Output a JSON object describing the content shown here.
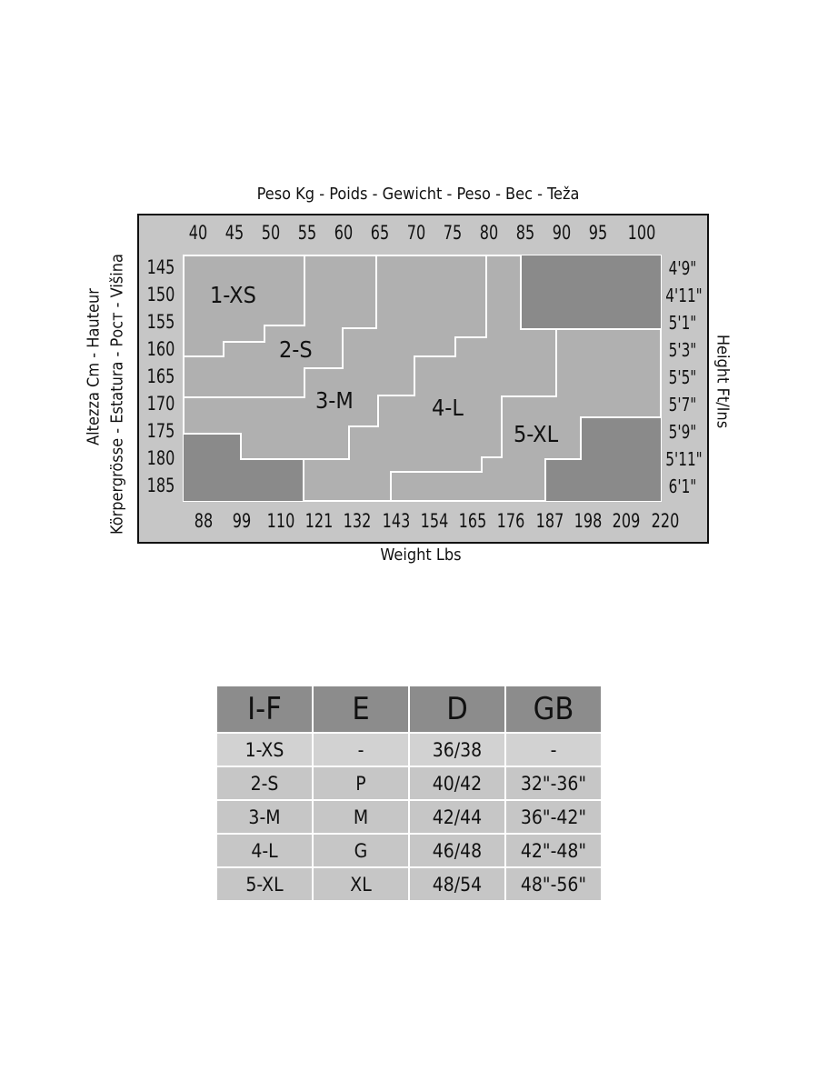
{
  "chart": {
    "top_title": "Peso Kg - Poids - Gewicht - Peso - Bec - Teža",
    "bottom_title": "Weight Lbs",
    "left_title_1": "Altezza Cm - Hauteur",
    "left_title_2": "Körpergrösse - Estatura - Рост - Višina",
    "right_title": "Height Ft/Ins",
    "kg_ticks": [
      "40",
      "45",
      "50",
      "55",
      "60",
      "65",
      "70",
      "75",
      "80",
      "85",
      "90",
      "95",
      "100"
    ],
    "lbs_ticks": [
      "88",
      "99",
      "110",
      "121",
      "132",
      "143",
      "154",
      "165",
      "176",
      "187",
      "198",
      "209",
      "220"
    ],
    "cm_ticks": [
      "145",
      "150",
      "155",
      "160",
      "165",
      "170",
      "175",
      "180",
      "185"
    ],
    "ft_ticks": [
      "4'9\"",
      "4'11\"",
      "5'1\"",
      "5'3\"",
      "5'5\"",
      "5'7\"",
      "5'9\"",
      "5'11\"",
      "6'1\""
    ],
    "zones": [
      "1-XS",
      "2-S",
      "3-M",
      "4-L",
      "5-XL"
    ],
    "colors": {
      "zone": "#b0b0b0",
      "outside": "#8a8a8a",
      "frame": "#c6c6c6",
      "lines": "#ffffff"
    }
  },
  "table": {
    "headers": [
      "I-F",
      "E",
      "D",
      "GB"
    ],
    "rows": [
      [
        "1-XS",
        "-",
        "36/38",
        "-"
      ],
      [
        "2-S",
        "P",
        "40/42",
        "32\"-36\""
      ],
      [
        "3-M",
        "M",
        "42/44",
        "36\"-42\""
      ],
      [
        "4-L",
        "G",
        "46/48",
        "42\"-48\""
      ],
      [
        "5-XL",
        "XL",
        "48/54",
        "48\"-56\""
      ]
    ]
  }
}
